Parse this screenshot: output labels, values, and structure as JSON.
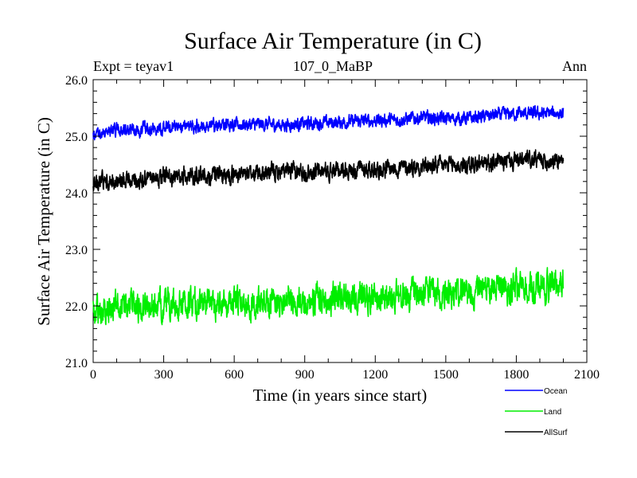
{
  "chart_data": {
    "type": "line",
    "title": "Surface Air Temperature (in C)",
    "subtitle": "107_0_MaBP",
    "left_label": "Expt = teyav1",
    "right_label": "Ann",
    "xlabel": "Time (in years since start)",
    "ylabel": "Surface Air Temperature (in C)",
    "xlim": [
      0,
      2100
    ],
    "ylim": [
      21.0,
      26.0
    ],
    "x_ticks": [
      "0",
      "300",
      "600",
      "900",
      "1200",
      "1500",
      "1800",
      "2100"
    ],
    "x_tick_values": [
      0,
      300,
      600,
      900,
      1200,
      1500,
      1800,
      2100
    ],
    "y_ticks": [
      "21.0",
      "22.0",
      "23.0",
      "24.0",
      "25.0",
      "26.0"
    ],
    "y_tick_values": [
      21.0,
      22.0,
      23.0,
      24.0,
      25.0,
      26.0
    ],
    "x_data_range": [
      0,
      2000
    ],
    "legend_position": "bottom-right",
    "series": [
      {
        "name": "Ocean",
        "color": "#0000ff",
        "trend_start": 25.05,
        "trend_end": 25.42,
        "noise_amplitude": 0.09,
        "values_every_100_years": [
          25.03,
          25.1,
          25.12,
          25.16,
          25.18,
          25.17,
          25.2,
          25.21,
          25.2,
          25.22,
          25.24,
          25.26,
          25.28,
          25.29,
          25.33,
          25.31,
          25.32,
          25.37,
          25.4,
          25.4,
          25.41
        ]
      },
      {
        "name": "Land",
        "color": "#00ee00",
        "trend_start": 21.85,
        "trend_end": 22.35,
        "noise_amplitude": 0.2,
        "values_every_100_years": [
          21.9,
          21.95,
          21.98,
          22.0,
          22.02,
          22.05,
          22.06,
          22.08,
          22.1,
          22.1,
          22.12,
          22.15,
          22.18,
          22.17,
          22.2,
          22.24,
          22.25,
          22.3,
          22.3,
          22.33,
          22.35
        ]
      },
      {
        "name": "AllSurf",
        "color": "#000000",
        "trend_start": 24.18,
        "trend_end": 24.58,
        "noise_amplitude": 0.12,
        "values_every_100_years": [
          24.17,
          24.22,
          24.25,
          24.28,
          24.3,
          24.3,
          24.33,
          24.35,
          24.36,
          24.37,
          24.38,
          24.41,
          24.43,
          24.44,
          24.47,
          24.48,
          24.49,
          24.53,
          24.56,
          24.57,
          24.58
        ]
      }
    ]
  }
}
